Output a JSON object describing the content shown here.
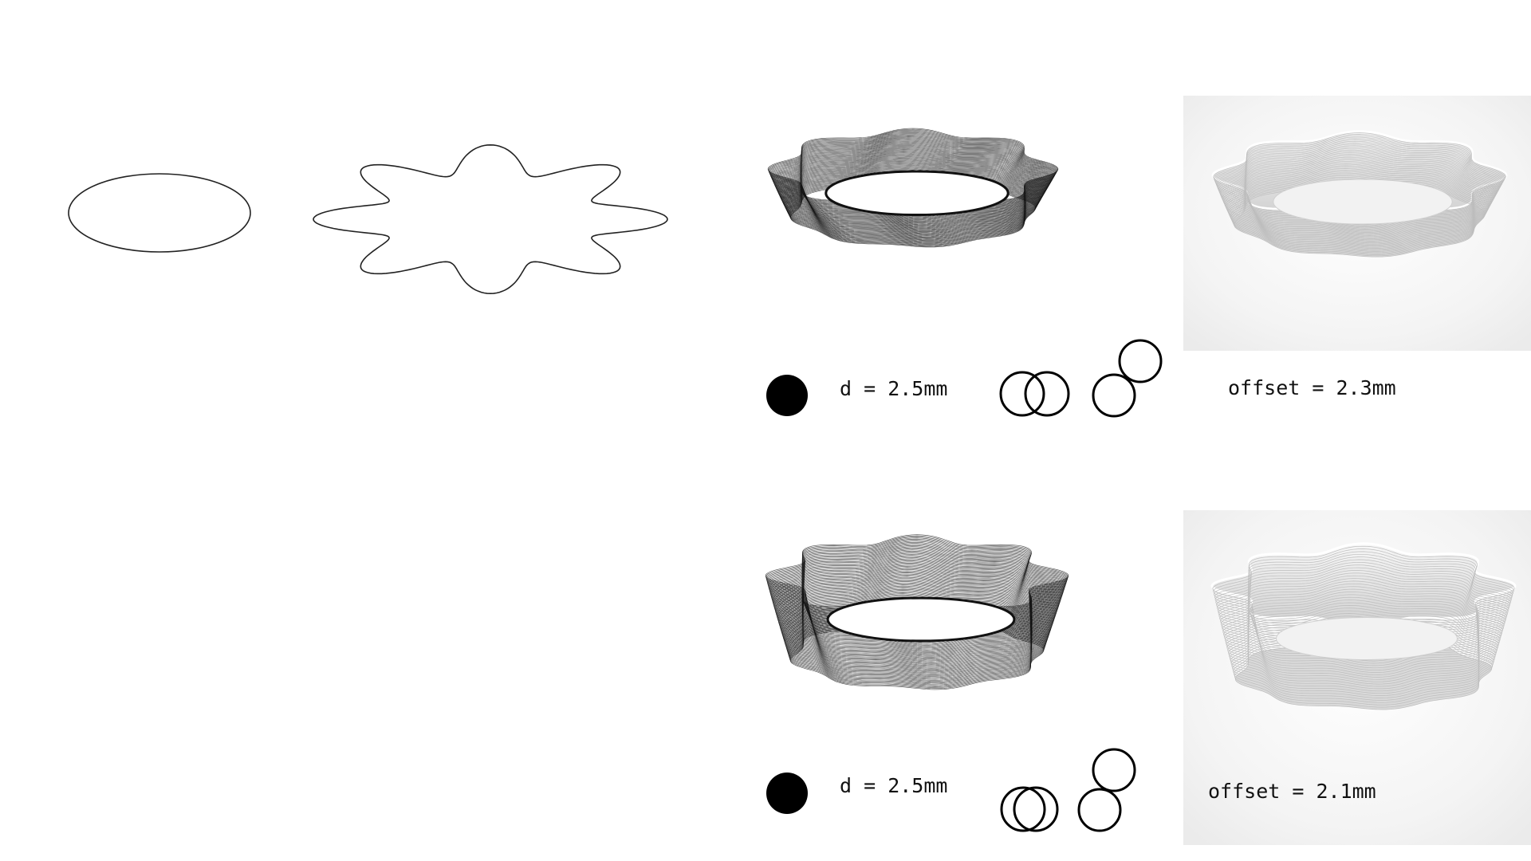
{
  "rows": [
    {
      "diameter_text": "d = 2.5mm",
      "offset_text": "offset = 2.3mm"
    },
    {
      "diameter_text": "d = 2.5mm",
      "offset_text": "offset = 2.1mm"
    }
  ],
  "colors": {
    "background": "#ffffff",
    "line": "#111111",
    "render_bg": "#f1f1f1",
    "render_surface": "#e4e4e4"
  },
  "icons": [
    "circle-outline-icon",
    "star-curve-icon",
    "filled-dot-icon",
    "overlapping-circles-icon",
    "offset-circles-icon"
  ]
}
